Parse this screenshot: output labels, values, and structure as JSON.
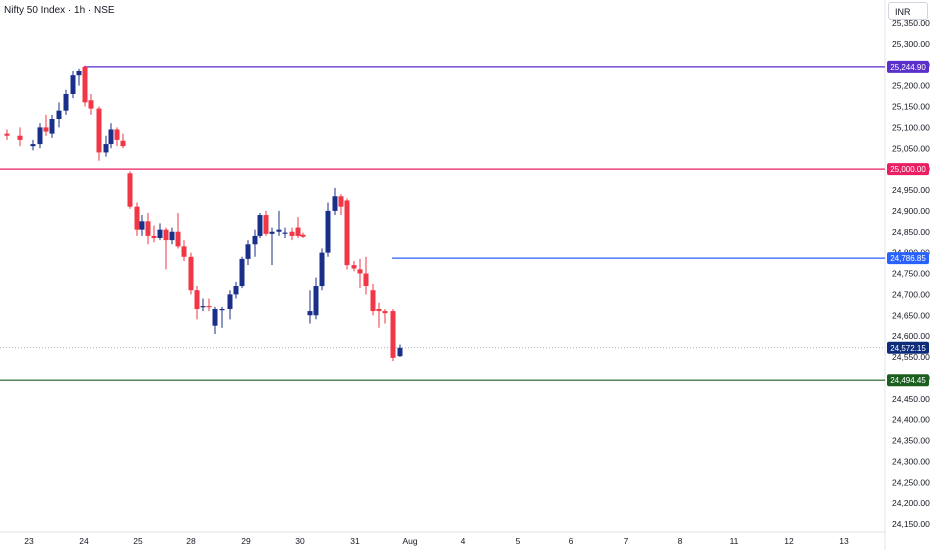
{
  "header": {
    "title": "Nifty 50 Index · 1h · NSE",
    "currency": "INR"
  },
  "chart_data": {
    "type": "candlestick",
    "currency": "INR",
    "ylim": [
      24130,
      25380
    ],
    "y_ticks": [
      "25,350.00",
      "25,300.00",
      "25,250.00",
      "25,200.00",
      "25,150.00",
      "25,100.00",
      "25,050.00",
      "25,000.00",
      "24,950.00",
      "24,900.00",
      "24,850.00",
      "24,800.00",
      "24,750.00",
      "24,700.00",
      "24,650.00",
      "24,600.00",
      "24,550.00",
      "24,500.00",
      "24,450.00",
      "24,400.00",
      "24,350.00",
      "24,300.00",
      "24,250.00",
      "24,200.00",
      "24,150.00"
    ],
    "x_ticks": [
      "23",
      "24",
      "25",
      "28",
      "29",
      "30",
      "31",
      "Aug",
      "4",
      "5",
      "6",
      "7",
      "8",
      "11",
      "12",
      "13"
    ],
    "horizontal_levels": [
      {
        "label": "25,244.90",
        "value": 25244.9,
        "color": "#5b2fc9"
      },
      {
        "label": "25,000.00",
        "value": 25000.0,
        "color": "#e91e63"
      },
      {
        "label": "24,786.85",
        "value": 24786.85,
        "color": "#2962ff"
      },
      {
        "label": "24,494.45",
        "value": 24494.45,
        "color": "#1b5e20"
      }
    ],
    "last_price": {
      "label": "24,572.15",
      "value": 24572.15,
      "color": "#0d2c7a"
    },
    "up_color": "#1a2f8a",
    "down_color": "#f23645",
    "candles": [
      {
        "o": 25085,
        "h": 25095,
        "l": 25070,
        "c": 25080
      },
      {
        "o": 25080,
        "h": 25100,
        "l": 25055,
        "c": 25070
      },
      {
        "o": 25055,
        "h": 25070,
        "l": 25045,
        "c": 25060
      },
      {
        "o": 25060,
        "h": 25110,
        "l": 25050,
        "c": 25100
      },
      {
        "o": 25100,
        "h": 25130,
        "l": 25080,
        "c": 25090
      },
      {
        "o": 25085,
        "h": 25130,
        "l": 25075,
        "c": 25120
      },
      {
        "o": 25120,
        "h": 25160,
        "l": 25100,
        "c": 25140
      },
      {
        "o": 25140,
        "h": 25190,
        "l": 25130,
        "c": 25180
      },
      {
        "o": 25180,
        "h": 25235,
        "l": 25170,
        "c": 25225
      },
      {
        "o": 25225,
        "h": 25240,
        "l": 25200,
        "c": 25235
      },
      {
        "o": 25245,
        "h": 25248,
        "l": 25150,
        "c": 25160
      },
      {
        "o": 25165,
        "h": 25180,
        "l": 25130,
        "c": 25145
      },
      {
        "o": 25145,
        "h": 25150,
        "l": 25020,
        "c": 25040
      },
      {
        "o": 25040,
        "h": 25080,
        "l": 25030,
        "c": 25060
      },
      {
        "o": 25060,
        "h": 25110,
        "l": 25050,
        "c": 25095
      },
      {
        "o": 25095,
        "h": 25100,
        "l": 25055,
        "c": 25070
      },
      {
        "o": 25068,
        "h": 25085,
        "l": 25050,
        "c": 25055
      },
      {
        "o": 24990,
        "h": 24995,
        "l": 24905,
        "c": 24910
      },
      {
        "o": 24910,
        "h": 24920,
        "l": 24840,
        "c": 24855
      },
      {
        "o": 24855,
        "h": 24890,
        "l": 24840,
        "c": 24875
      },
      {
        "o": 24875,
        "h": 24895,
        "l": 24820,
        "c": 24840
      },
      {
        "o": 24840,
        "h": 24865,
        "l": 24825,
        "c": 24835
      },
      {
        "o": 24835,
        "h": 24870,
        "l": 24830,
        "c": 24855
      },
      {
        "o": 24855,
        "h": 24860,
        "l": 24760,
        "c": 24830
      },
      {
        "o": 24830,
        "h": 24860,
        "l": 24820,
        "c": 24850
      },
      {
        "o": 24850,
        "h": 24895,
        "l": 24810,
        "c": 24815
      },
      {
        "o": 24815,
        "h": 24830,
        "l": 24780,
        "c": 24790
      },
      {
        "o": 24790,
        "h": 24800,
        "l": 24700,
        "c": 24710
      },
      {
        "o": 24710,
        "h": 24720,
        "l": 24640,
        "c": 24665
      },
      {
        "o": 24670,
        "h": 24690,
        "l": 24660,
        "c": 24672
      },
      {
        "o": 24672,
        "h": 24690,
        "l": 24660,
        "c": 24670
      },
      {
        "o": 24625,
        "h": 24670,
        "l": 24605,
        "c": 24665
      },
      {
        "o": 24665,
        "h": 24670,
        "l": 24620,
        "c": 24665
      },
      {
        "o": 24665,
        "h": 24710,
        "l": 24640,
        "c": 24700
      },
      {
        "o": 24700,
        "h": 24730,
        "l": 24690,
        "c": 24720
      },
      {
        "o": 24720,
        "h": 24790,
        "l": 24715,
        "c": 24785
      },
      {
        "o": 24785,
        "h": 24830,
        "l": 24770,
        "c": 24820
      },
      {
        "o": 24820,
        "h": 24855,
        "l": 24790,
        "c": 24840
      },
      {
        "o": 24840,
        "h": 24895,
        "l": 24835,
        "c": 24890
      },
      {
        "o": 24890,
        "h": 24900,
        "l": 24840,
        "c": 24845
      },
      {
        "o": 24845,
        "h": 24860,
        "l": 24770,
        "c": 24850
      },
      {
        "o": 24850,
        "h": 24900,
        "l": 24840,
        "c": 24855
      },
      {
        "o": 24848,
        "h": 24860,
        "l": 24835,
        "c": 24848
      },
      {
        "o": 24850,
        "h": 24860,
        "l": 24830,
        "c": 24840
      },
      {
        "o": 24860,
        "h": 24885,
        "l": 24835,
        "c": 24840
      },
      {
        "o": 24843,
        "h": 24848,
        "l": 24835,
        "c": 24838
      },
      {
        "o": 24650,
        "h": 24710,
        "l": 24630,
        "c": 24660
      },
      {
        "o": 24650,
        "h": 24740,
        "l": 24640,
        "c": 24720
      },
      {
        "o": 24720,
        "h": 24810,
        "l": 24710,
        "c": 24800
      },
      {
        "o": 24800,
        "h": 24920,
        "l": 24790,
        "c": 24900
      },
      {
        "o": 24900,
        "h": 24955,
        "l": 24890,
        "c": 24935
      },
      {
        "o": 24935,
        "h": 24940,
        "l": 24890,
        "c": 24910
      },
      {
        "o": 24925,
        "h": 24930,
        "l": 24760,
        "c": 24770
      },
      {
        "o": 24770,
        "h": 24780,
        "l": 24755,
        "c": 24762
      },
      {
        "o": 24760,
        "h": 24785,
        "l": 24715,
        "c": 24750
      },
      {
        "o": 24750,
        "h": 24790,
        "l": 24700,
        "c": 24720
      },
      {
        "o": 24710,
        "h": 24725,
        "l": 24650,
        "c": 24660
      },
      {
        "o": 24665,
        "h": 24680,
        "l": 24620,
        "c": 24660
      },
      {
        "o": 24660,
        "h": 24665,
        "l": 24630,
        "c": 24655
      },
      {
        "o": 24660,
        "h": 24665,
        "l": 24540,
        "c": 24548
      },
      {
        "o": 24552,
        "h": 24580,
        "l": 24550,
        "c": 24572
      }
    ],
    "candle_x": [
      7,
      20,
      33,
      40,
      46,
      52,
      59,
      66,
      73,
      79,
      85,
      91,
      99,
      106,
      111,
      117,
      123,
      130,
      137,
      142,
      148,
      154,
      160,
      166,
      172,
      178,
      184,
      191,
      197,
      203,
      209,
      215,
      222,
      230,
      236,
      242,
      248,
      255,
      260,
      266,
      272,
      279,
      285,
      292,
      298,
      303,
      310,
      316,
      322,
      328,
      335,
      341,
      347,
      354,
      360,
      366,
      373,
      379,
      385,
      393,
      400
    ]
  }
}
